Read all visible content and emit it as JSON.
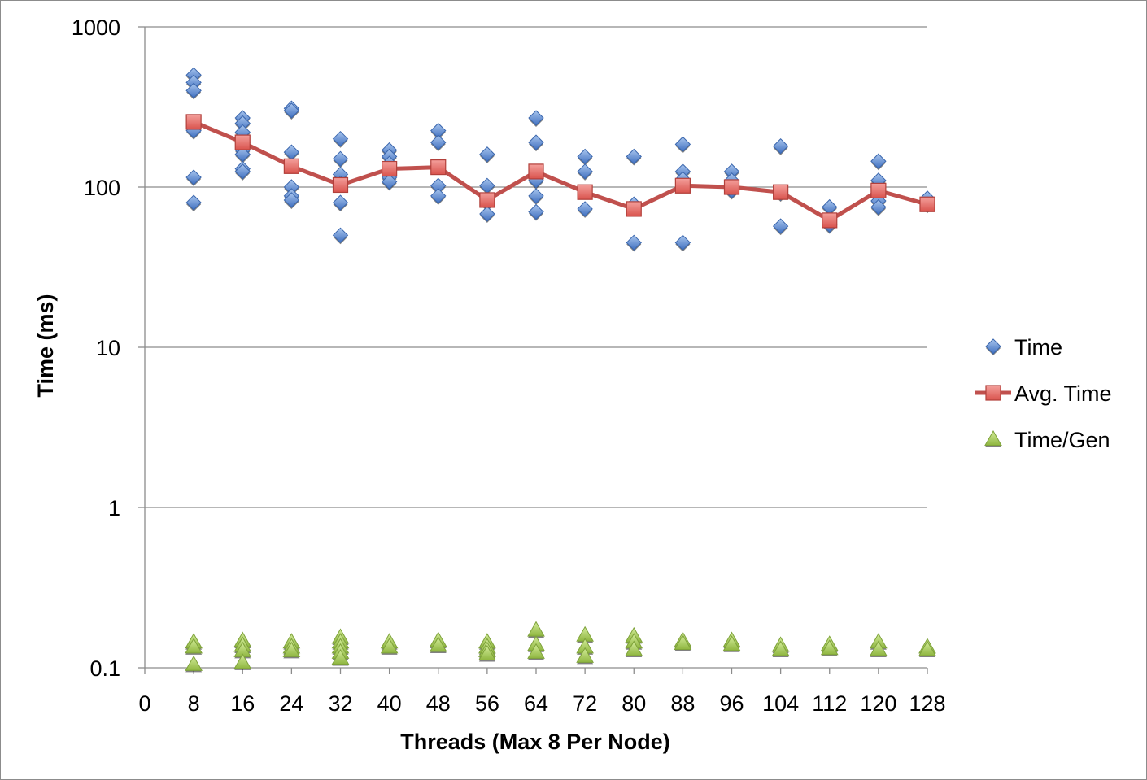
{
  "chart_data": {
    "type": "scatter",
    "title": "",
    "xlabel": "Threads (Max 8 Per Node)",
    "ylabel": "Time (ms)",
    "xlim": [
      0,
      128
    ],
    "x_ticks": [
      0,
      8,
      16,
      24,
      32,
      40,
      48,
      56,
      64,
      72,
      80,
      88,
      96,
      104,
      112,
      120,
      128
    ],
    "ylim": [
      0.1,
      1000
    ],
    "y_scale": "log",
    "y_ticks": [
      {
        "value": 0.1,
        "label": "0.1"
      },
      {
        "value": 1,
        "label": "1"
      },
      {
        "value": 10,
        "label": "10"
      },
      {
        "value": 100,
        "label": "100"
      },
      {
        "value": 1000,
        "label": "1000"
      }
    ],
    "grid": "horizontal major gridlines",
    "legend_position": "right",
    "series": [
      {
        "name": "Time",
        "marker": "diamond",
        "color": "#4f81bd",
        "points": [
          [
            8,
            500
          ],
          [
            8,
            450
          ],
          [
            8,
            400
          ],
          [
            8,
            240
          ],
          [
            8,
            225
          ],
          [
            8,
            115
          ],
          [
            8,
            80
          ],
          [
            16,
            270
          ],
          [
            16,
            250
          ],
          [
            16,
            220
          ],
          [
            16,
            190
          ],
          [
            16,
            170
          ],
          [
            16,
            160
          ],
          [
            16,
            130
          ],
          [
            16,
            125
          ],
          [
            24,
            310
          ],
          [
            24,
            300
          ],
          [
            24,
            165
          ],
          [
            24,
            100
          ],
          [
            24,
            88
          ],
          [
            24,
            83
          ],
          [
            32,
            200
          ],
          [
            32,
            150
          ],
          [
            32,
            120
          ],
          [
            32,
            105
          ],
          [
            32,
            80
          ],
          [
            32,
            50
          ],
          [
            40,
            170
          ],
          [
            40,
            155
          ],
          [
            40,
            140
          ],
          [
            40,
            115
          ],
          [
            40,
            108
          ],
          [
            48,
            225
          ],
          [
            48,
            190
          ],
          [
            48,
            102
          ],
          [
            48,
            88
          ],
          [
            56,
            160
          ],
          [
            56,
            102
          ],
          [
            56,
            80
          ],
          [
            56,
            68
          ],
          [
            64,
            270
          ],
          [
            64,
            190
          ],
          [
            64,
            110
          ],
          [
            64,
            88
          ],
          [
            64,
            70
          ],
          [
            72,
            155
          ],
          [
            72,
            125
          ],
          [
            72,
            73
          ],
          [
            80,
            155
          ],
          [
            80,
            78
          ],
          [
            80,
            45
          ],
          [
            88,
            185
          ],
          [
            88,
            125
          ],
          [
            88,
            112
          ],
          [
            88,
            45
          ],
          [
            96,
            125
          ],
          [
            96,
            110
          ],
          [
            96,
            95
          ],
          [
            104,
            180
          ],
          [
            104,
            92
          ],
          [
            104,
            57
          ],
          [
            112,
            75
          ],
          [
            112,
            58
          ],
          [
            120,
            145
          ],
          [
            120,
            110
          ],
          [
            120,
            82
          ],
          [
            120,
            75
          ],
          [
            128,
            85
          ],
          [
            128,
            78
          ]
        ]
      },
      {
        "name": "Avg. Time",
        "marker": "square",
        "line": true,
        "color": "#c0504d",
        "points": [
          [
            8,
            255
          ],
          [
            16,
            190
          ],
          [
            24,
            135
          ],
          [
            32,
            103
          ],
          [
            40,
            130
          ],
          [
            48,
            133
          ],
          [
            56,
            83
          ],
          [
            64,
            125
          ],
          [
            72,
            93
          ],
          [
            80,
            73
          ],
          [
            88,
            102
          ],
          [
            96,
            100
          ],
          [
            104,
            93
          ],
          [
            112,
            62
          ],
          [
            120,
            95
          ],
          [
            128,
            78
          ]
        ]
      },
      {
        "name": "Time/Gen",
        "marker": "triangle",
        "color": "#9bbb59",
        "points": [
          [
            8,
            0.145
          ],
          [
            8,
            0.135
          ],
          [
            8,
            0.105
          ],
          [
            16,
            0.148
          ],
          [
            16,
            0.138
          ],
          [
            16,
            0.128
          ],
          [
            16,
            0.108
          ],
          [
            24,
            0.145
          ],
          [
            24,
            0.135
          ],
          [
            24,
            0.128
          ],
          [
            32,
            0.155
          ],
          [
            32,
            0.145
          ],
          [
            32,
            0.135
          ],
          [
            32,
            0.125
          ],
          [
            32,
            0.115
          ],
          [
            40,
            0.145
          ],
          [
            40,
            0.135
          ],
          [
            48,
            0.148
          ],
          [
            48,
            0.138
          ],
          [
            56,
            0.145
          ],
          [
            56,
            0.135
          ],
          [
            56,
            0.128
          ],
          [
            56,
            0.122
          ],
          [
            64,
            0.172
          ],
          [
            64,
            0.14
          ],
          [
            64,
            0.125
          ],
          [
            72,
            0.16
          ],
          [
            72,
            0.135
          ],
          [
            72,
            0.118
          ],
          [
            80,
            0.158
          ],
          [
            80,
            0.145
          ],
          [
            80,
            0.13
          ],
          [
            88,
            0.148
          ],
          [
            88,
            0.142
          ],
          [
            96,
            0.148
          ],
          [
            96,
            0.14
          ],
          [
            104,
            0.138
          ],
          [
            104,
            0.13
          ],
          [
            112,
            0.14
          ],
          [
            112,
            0.132
          ],
          [
            120,
            0.145
          ],
          [
            120,
            0.13
          ],
          [
            128,
            0.135
          ],
          [
            128,
            0.13
          ]
        ]
      }
    ]
  }
}
